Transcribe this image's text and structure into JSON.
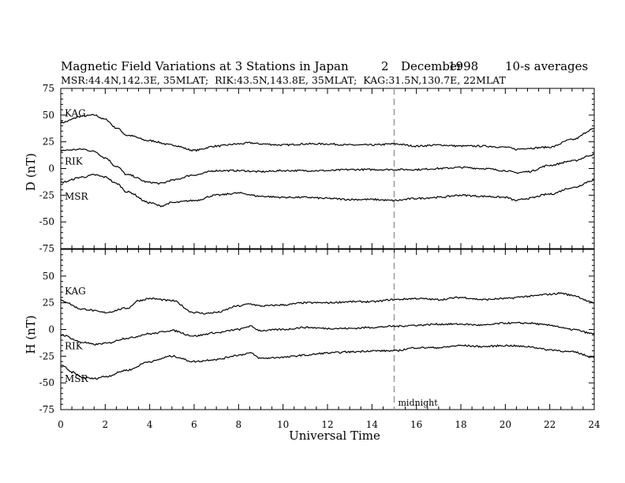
{
  "chart_data": [
    {
      "type": "line",
      "panel": "D",
      "ylabel": "D (nT)",
      "ylim": [
        -75,
        75
      ],
      "yticks": [
        75,
        50,
        25,
        0,
        -25,
        -50,
        -75
      ],
      "series": [
        {
          "name": "KAG",
          "x": [
            0,
            1,
            1.5,
            2,
            2.5,
            3,
            4,
            5,
            6,
            7,
            8,
            8.5,
            9,
            10,
            11,
            12,
            13,
            14,
            15,
            16,
            17,
            18,
            19,
            20,
            20.5,
            21,
            22,
            23,
            24
          ],
          "values": [
            43,
            49,
            50,
            46,
            38,
            31,
            26,
            22,
            17,
            21,
            23,
            24,
            23,
            22,
            23,
            23,
            22,
            22,
            23,
            21,
            22,
            21,
            21,
            20,
            18,
            19,
            20,
            27,
            37
          ]
        },
        {
          "name": "RIK",
          "x": [
            0,
            1,
            1.5,
            2,
            2.5,
            3,
            4,
            4.5,
            5,
            6,
            7,
            8,
            9,
            10,
            11,
            12,
            13,
            14,
            15,
            16,
            17,
            18,
            19,
            20,
            20.5,
            21,
            22,
            23,
            24
          ],
          "values": [
            17,
            18,
            16,
            10,
            2,
            -6,
            -13,
            -14,
            -11,
            -6,
            -2,
            -2,
            -3,
            -2,
            -2,
            -2,
            -1,
            -1,
            -1,
            -1,
            0,
            1,
            0,
            -2,
            -4,
            -3,
            3,
            7,
            13
          ]
        },
        {
          "name": "MSR",
          "x": [
            0,
            1,
            1.5,
            2,
            2.5,
            3,
            4,
            4.5,
            5,
            6,
            7,
            8,
            9,
            10,
            11,
            12,
            13,
            14,
            15,
            16,
            17,
            18,
            19,
            20,
            20.5,
            21,
            22,
            23,
            24
          ],
          "values": [
            -13,
            -8,
            -6,
            -8,
            -14,
            -22,
            -32,
            -35,
            -32,
            -30,
            -25,
            -23,
            -26,
            -27,
            -27,
            -28,
            -29,
            -29,
            -30,
            -28,
            -27,
            -25,
            -26,
            -27,
            -30,
            -28,
            -24,
            -18,
            -11
          ]
        }
      ],
      "series_labels": [
        "KAG",
        "RIK",
        "MSR"
      ]
    },
    {
      "type": "line",
      "panel": "H",
      "ylabel": "H (nT)",
      "ylim": [
        -75,
        75
      ],
      "yticks": [
        75,
        50,
        25,
        0,
        -25,
        -50,
        -75
      ],
      "series": [
        {
          "name": "KAG",
          "x": [
            0,
            1,
            2,
            3,
            3.5,
            4,
            5,
            6,
            6.5,
            7,
            8,
            8.5,
            9,
            10,
            11,
            12,
            13,
            14,
            15,
            16,
            17,
            18,
            19,
            20,
            21,
            22,
            22.5,
            23,
            24
          ],
          "values": [
            27,
            19,
            16,
            20,
            27,
            29,
            27,
            16,
            15,
            16,
            22,
            24,
            22,
            23,
            25,
            25,
            26,
            26,
            28,
            29,
            28,
            30,
            28,
            29,
            31,
            33,
            34,
            32,
            25
          ]
        },
        {
          "name": "RIK",
          "x": [
            0,
            1,
            1.5,
            2,
            3,
            4,
            5,
            6,
            7,
            8,
            8.5,
            9,
            10,
            11,
            12,
            13,
            14,
            15,
            16,
            17,
            18,
            19,
            20,
            21,
            22,
            23,
            24
          ],
          "values": [
            -5,
            -12,
            -14,
            -13,
            -8,
            -4,
            -1,
            -6,
            -3,
            0,
            3,
            -1,
            0,
            2,
            1,
            1,
            2,
            3,
            4,
            5,
            5,
            4,
            6,
            6,
            4,
            0,
            -4
          ]
        },
        {
          "name": "MSR",
          "x": [
            0,
            0.5,
            1,
            1.5,
            2,
            3,
            4,
            5,
            6,
            7,
            8,
            8.5,
            9,
            10,
            11,
            12,
            13,
            14,
            15,
            16,
            17,
            18,
            19,
            20,
            21,
            22,
            23,
            24
          ],
          "values": [
            -33,
            -40,
            -45,
            -46,
            -44,
            -38,
            -30,
            -25,
            -30,
            -28,
            -24,
            -22,
            -27,
            -26,
            -24,
            -22,
            -21,
            -20,
            -20,
            -17,
            -17,
            -15,
            -16,
            -15,
            -16,
            -19,
            -21,
            -26
          ]
        }
      ],
      "series_labels": [
        "KAG",
        "RIK",
        "MSR"
      ]
    }
  ],
  "title": {
    "main": "Magnetic Field Variations at 3 Stations in Japan",
    "day": "2",
    "month": "December",
    "year": "1998",
    "averages": "10-s averages"
  },
  "subtitle": "MSR:44.4N,142.3E, 35MLAT;  RIK:43.5N,143.8E, 35MLAT;  KAG:31.5N,130.7E, 22MLAT",
  "x_axis": {
    "label": "Universal Time",
    "xlim": [
      0,
      24
    ],
    "ticks": [
      "0",
      "2",
      "4",
      "6",
      "8",
      "10",
      "12",
      "14",
      "16",
      "18",
      "20",
      "22",
      "24"
    ],
    "minor_tick_step": 0.5
  },
  "marker": {
    "x": 15,
    "label": "midnight",
    "color": "#999999",
    "style": "dashed"
  },
  "line_color": "#000000"
}
